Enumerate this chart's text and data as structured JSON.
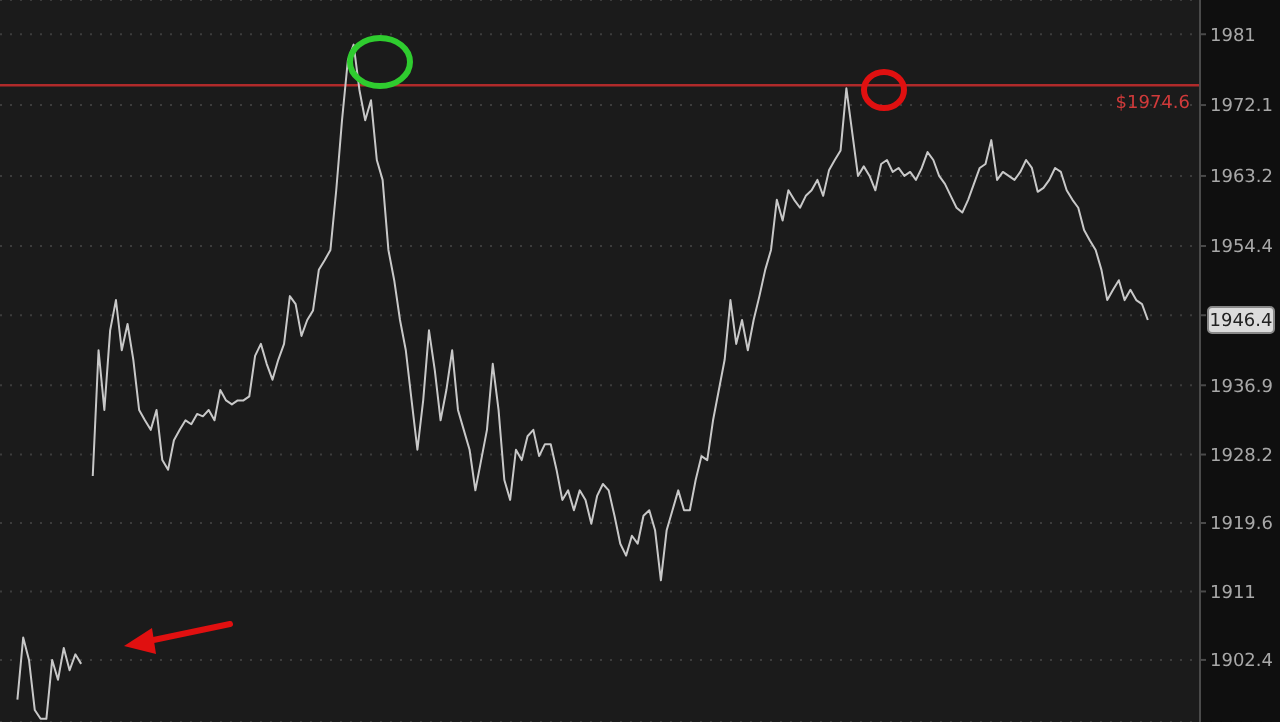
{
  "chart_data": {
    "type": "line",
    "categories": [
      null,
      null,
      null,
      null,
      null,
      null,
      null,
      null,
      null,
      null,
      null,
      null,
      null,
      null,
      null,
      null,
      null,
      null,
      null,
      null,
      null,
      null,
      null,
      null,
      null,
      null,
      null,
      null,
      null,
      null,
      null,
      null,
      null,
      null,
      null,
      null,
      null,
      null,
      null,
      null,
      null,
      null,
      null,
      null,
      null,
      null,
      null,
      null,
      null,
      null,
      null,
      null,
      null,
      null,
      null,
      null,
      null,
      null,
      null,
      null,
      null,
      null,
      null,
      null,
      null,
      null,
      null,
      null,
      null,
      null,
      null,
      null,
      null,
      null,
      null,
      null,
      null,
      null,
      null,
      null,
      null,
      null,
      null,
      null,
      null,
      null,
      null,
      null,
      null,
      null,
      null,
      null,
      null,
      null,
      null,
      null,
      null,
      null,
      null,
      null,
      null,
      null,
      null,
      null,
      null,
      null,
      null,
      null,
      null,
      null,
      null,
      null,
      null,
      null,
      null,
      null,
      null,
      null,
      null,
      null,
      null,
      null,
      null,
      null,
      null,
      null,
      null,
      null,
      null,
      null,
      null,
      null,
      null,
      null,
      null,
      null,
      null,
      null,
      null,
      null,
      null,
      null,
      null,
      null,
      null,
      null,
      null,
      null,
      null,
      null,
      null,
      null,
      null,
      null,
      null,
      null,
      null,
      null,
      null,
      null,
      null,
      null,
      null,
      null,
      null,
      null,
      null,
      null,
      null,
      null,
      null,
      null,
      null,
      null,
      null,
      null,
      null,
      null,
      null,
      null,
      null,
      null,
      null,
      null,
      null,
      null,
      null,
      null,
      null,
      null,
      null,
      null,
      null,
      null,
      null,
      null,
      null,
      null,
      null,
      null,
      null,
      null,
      null,
      null,
      null,
      null,
      null,
      null
    ],
    "series": [
      {
        "color": "#c8c8c8",
        "values": [
          null,
          null,
          null,
          1897.4,
          1905.2,
          1902.4,
          1896.1,
          1895.0,
          1895.0,
          1902.4,
          1899.9,
          1903.9,
          1901.1,
          1903.1,
          1901.9,
          null,
          null,
          null,
          null,
          null,
          null,
          null,
          null,
          null,
          null,
          null,
          null,
          null,
          null,
          null,
          null,
          null,
          null,
          null,
          null,
          null,
          null,
          null,
          null,
          null,
          null,
          null,
          null,
          null,
          null,
          null,
          null,
          null,
          null,
          null,
          null,
          null,
          null,
          null,
          null,
          null,
          null,
          null,
          null,
          null,
          null,
          null,
          null,
          null,
          null,
          null,
          null,
          null,
          null,
          null,
          null,
          null,
          null,
          null,
          null,
          null,
          null,
          null,
          null,
          null,
          null,
          null,
          null,
          null,
          null,
          null,
          null,
          null,
          null,
          null,
          null,
          null,
          null,
          null,
          null,
          null,
          null,
          null,
          null,
          null,
          null,
          null,
          null,
          null,
          null,
          null,
          null,
          null,
          null,
          null,
          null,
          null,
          null,
          null,
          null,
          null,
          null,
          null,
          null,
          null,
          null,
          null,
          null,
          null,
          null,
          null,
          null,
          null,
          null,
          null,
          null,
          null,
          null,
          null,
          null,
          null,
          null,
          null,
          null,
          null,
          null,
          null,
          null,
          null,
          null,
          null,
          null,
          null,
          null,
          null,
          null,
          null,
          null,
          null,
          null,
          null,
          null,
          null,
          null,
          null,
          null,
          null,
          null,
          null,
          null,
          null,
          null,
          null,
          null,
          null,
          null,
          null,
          null,
          null,
          null,
          null,
          null,
          null,
          null,
          null,
          null,
          null,
          null,
          null,
          null,
          null,
          null,
          null,
          null,
          null,
          null,
          null,
          null,
          null,
          null,
          null,
          null,
          null,
          null,
          null,
          null,
          null,
          null,
          null,
          null,
          null,
          null,
          null
        ]
      },
      {
        "color": "#c8c8c8",
        "values": [
          null,
          null,
          null,
          null,
          null,
          null,
          null,
          null,
          null,
          null,
          null,
          null,
          null,
          null,
          null,
          null,
          1925.5,
          1941.3,
          1933.8,
          1943.8,
          1947.6,
          1941.3,
          1944.6,
          1940.1,
          1933.8,
          1932.5,
          1931.3,
          1933.8,
          1927.5,
          1926.3,
          1930.0,
          1931.3,
          1932.5,
          1932.0,
          1933.3,
          1933.0,
          1933.8,
          1932.5,
          1936.3,
          1935.0,
          1934.5,
          1935.0,
          1935.0,
          1935.5,
          1940.6,
          1942.1,
          1939.6,
          1937.6,
          1940.1,
          1942.1,
          1948.1,
          1947.1,
          1943.1,
          1945.1,
          1946.3,
          1951.4,
          1952.6,
          1953.9,
          1961.4,
          1970.2,
          1977.7,
          1979.7,
          1974.0,
          1970.2,
          1972.7,
          1965.2,
          1962.7,
          1953.9,
          1950.1,
          1945.1,
          1941.3,
          1935.0,
          1928.8,
          1935.0,
          1943.8,
          1938.8,
          1932.5,
          1936.3,
          1941.3,
          1933.8,
          1931.3,
          1928.8,
          1923.7,
          1927.5,
          1931.3,
          1939.6,
          1933.8,
          1925.0,
          1922.5,
          1928.8,
          1927.5,
          1930.5,
          1931.3,
          1928.0,
          1929.5,
          1929.5,
          1926.3,
          1922.5,
          1923.7,
          1921.2,
          1923.7,
          1922.5,
          1919.5,
          1923.0,
          1924.5,
          1923.7,
          1920.5,
          1917.0,
          1915.5,
          1918.0,
          1917.0,
          1920.5,
          1921.2,
          1918.7,
          1912.4,
          1918.7,
          1921.2,
          1923.7,
          1921.2,
          1921.2,
          1925.0,
          1928.0,
          1927.5,
          1932.5,
          1936.3,
          1940.1,
          1947.6,
          1942.1,
          1945.1,
          1941.3,
          1945.1,
          1948.1,
          1951.4,
          1953.9,
          1960.2,
          1957.6,
          1961.4,
          1960.2,
          1959.2,
          1960.7,
          1961.4,
          1962.7,
          1960.7,
          1963.9,
          1965.2,
          1966.4,
          1974.2,
          1968.7,
          1963.2,
          1964.4,
          1963.2,
          1961.4,
          1964.7,
          1965.2,
          1963.7,
          1964.2,
          1963.2,
          1963.7,
          1962.7,
          1964.2,
          1966.2,
          1965.2,
          1963.2,
          1962.2,
          1960.7,
          1959.2,
          1958.6,
          1960.2,
          1962.2,
          1964.2,
          1964.7,
          1967.7,
          1962.7,
          1963.7,
          1963.2,
          1962.7,
          1963.7,
          1965.2,
          1964.2,
          1961.2,
          1961.7,
          1962.7,
          1964.2,
          1963.7,
          1961.4,
          1960.2,
          1959.2,
          1956.4,
          1955.1,
          1953.9,
          1951.4,
          1947.6,
          1948.9,
          1950.1,
          1947.6,
          1948.9,
          1947.6,
          1947.1,
          1945.1,
          null,
          null,
          null,
          null,
          null,
          null,
          null,
          null,
          null
        ]
      }
    ],
    "ylim": [
      1894.6,
      1985.3
    ],
    "yticks": [
      1902.4,
      1911,
      1919.6,
      1928.2,
      1936.9,
      {
        "value": 1945.7,
        "label": null
      },
      1954.4,
      1963.2,
      1972.1,
      1981
    ],
    "tick_labels": "y",
    "grid": "y",
    "marker": "none",
    "ref_lines": [
      {
        "axis": "y",
        "value": 1974.6,
        "label": "$1974.6",
        "color": "#b02a2a"
      }
    ],
    "annotations": [
      "1946.4"
    ]
  }
}
